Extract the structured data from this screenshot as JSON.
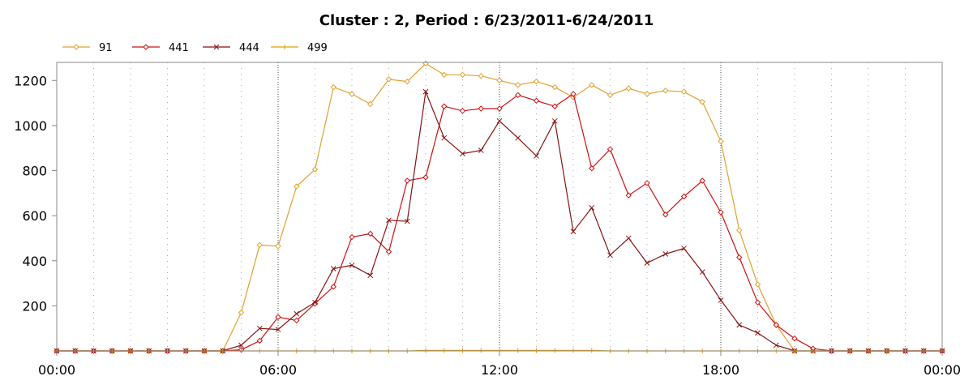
{
  "chart_data": {
    "type": "line",
    "title": "Cluster : 2, Period : 6/23/2011-6/24/2011",
    "xlabel": "",
    "ylabel": "",
    "xlim": [
      0,
      24
    ],
    "ylim": [
      0,
      1280
    ],
    "x_ticks": [
      0,
      6,
      12,
      18,
      24
    ],
    "x_tick_labels": [
      "00:00",
      "06:00",
      "12:00",
      "18:00",
      "00:00"
    ],
    "y_ticks": [
      200,
      400,
      600,
      800,
      1000,
      1200
    ],
    "y_tick_labels": [
      "200",
      "400",
      "600",
      "800",
      "1000",
      "1200"
    ],
    "grid": "vertical dotted lines at each hour",
    "legend_position": "top-left",
    "x": [
      0,
      0.5,
      1,
      1.5,
      2,
      2.5,
      3,
      3.5,
      4,
      4.5,
      5,
      5.5,
      6,
      6.5,
      7,
      7.5,
      8,
      8.5,
      9,
      9.5,
      10,
      10.5,
      11,
      11.5,
      12,
      12.5,
      13,
      13.5,
      14,
      14.5,
      15,
      15.5,
      16,
      16.5,
      17,
      17.5,
      18,
      18.5,
      19,
      19.5,
      20,
      20.5,
      21,
      21.5,
      22,
      22.5,
      23,
      23.5,
      24
    ],
    "series": [
      {
        "name": "91",
        "color": "#e0a030",
        "marker": "diamond",
        "values": [
          0,
          0,
          0,
          0,
          0,
          0,
          0,
          0,
          0,
          0,
          170,
          470,
          465,
          730,
          805,
          1170,
          1140,
          1095,
          1205,
          1195,
          1275,
          1225,
          1225,
          1220,
          1200,
          1180,
          1195,
          1170,
          1125,
          1180,
          1135,
          1165,
          1140,
          1155,
          1150,
          1105,
          930,
          535,
          295,
          115,
          0,
          0,
          0,
          0,
          0,
          0,
          0,
          0,
          0
        ]
      },
      {
        "name": "441",
        "color": "#cc1111",
        "marker": "diamond",
        "values": [
          0,
          0,
          0,
          0,
          0,
          0,
          0,
          0,
          0,
          0,
          5,
          45,
          150,
          135,
          210,
          285,
          505,
          520,
          440,
          755,
          770,
          1085,
          1065,
          1075,
          1075,
          1135,
          1110,
          1085,
          1140,
          810,
          895,
          690,
          745,
          605,
          685,
          755,
          615,
          415,
          215,
          115,
          55,
          10,
          0,
          0,
          0,
          0,
          0,
          0,
          0
        ]
      },
      {
        "name": "444",
        "color": "#881111",
        "marker": "x",
        "values": [
          0,
          0,
          0,
          0,
          0,
          0,
          0,
          0,
          0,
          0,
          25,
          100,
          95,
          165,
          215,
          365,
          380,
          335,
          580,
          575,
          1150,
          945,
          875,
          890,
          1020,
          945,
          865,
          1020,
          530,
          635,
          425,
          500,
          390,
          430,
          455,
          350,
          225,
          115,
          80,
          25,
          0,
          0,
          0,
          0,
          0,
          0,
          0,
          0,
          0
        ]
      },
      {
        "name": "499",
        "color": "#e8a000",
        "marker": "plus",
        "values": [
          0,
          0,
          0,
          0,
          0,
          0,
          0,
          0,
          0,
          0,
          0,
          0,
          0,
          0,
          0,
          0,
          0,
          0,
          0,
          0,
          2,
          2,
          2,
          2,
          2,
          2,
          2,
          2,
          2,
          2,
          0,
          0,
          0,
          0,
          0,
          0,
          0,
          0,
          0,
          0,
          0,
          0,
          0,
          0,
          0,
          0,
          0,
          0,
          0
        ]
      }
    ]
  }
}
